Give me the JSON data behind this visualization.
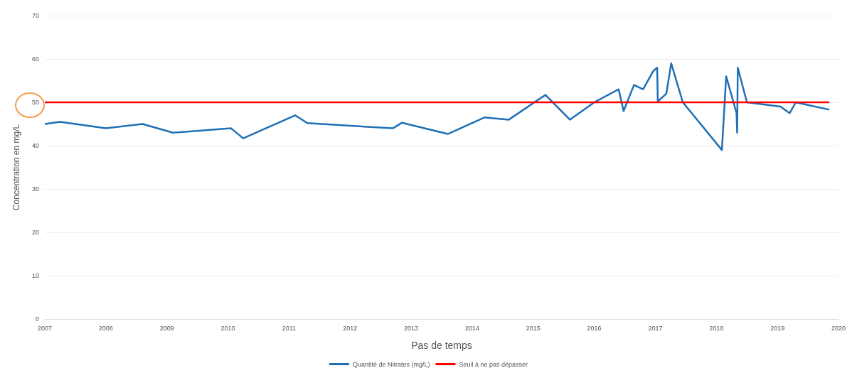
{
  "chart_data": {
    "type": "line",
    "xlabel": "Pas de temps",
    "ylabel": "Concentration en mg/L",
    "xlim": [
      2007,
      2020
    ],
    "xticks": [
      2007,
      2008,
      2009,
      2010,
      2011,
      2012,
      2013,
      2014,
      2015,
      2016,
      2017,
      2018,
      2019,
      2020
    ],
    "ylim": [
      0,
      70
    ],
    "yticks": [
      0,
      10,
      20,
      30,
      40,
      50,
      60,
      70
    ],
    "grid": "y",
    "legend": "bottom",
    "marker": "none",
    "line_style": "solid",
    "series": [
      {
        "name": "Quantité de Nitrates (mg/L)",
        "color": "#1f6fb5",
        "x": [
          2007.0,
          2007.25,
          2008.0,
          2008.6,
          2009.1,
          2010.05,
          2010.25,
          2011.1,
          2011.3,
          2012.7,
          2012.85,
          2013.6,
          2014.2,
          2014.6,
          2015.2,
          2015.6,
          2016.0,
          2016.4,
          2016.48,
          2016.65,
          2016.8,
          2016.97,
          2017.03,
          2017.04,
          2017.18,
          2017.26,
          2017.45,
          2018.09,
          2018.16,
          2018.33,
          2018.34,
          2018.35,
          2018.5,
          2019.05,
          2019.2,
          2019.3,
          2019.85
        ],
        "values": [
          45,
          45.5,
          44,
          45,
          43,
          44,
          41.7,
          47,
          45.2,
          44,
          45.3,
          42.7,
          46.5,
          46,
          51.7,
          46,
          50,
          53,
          48,
          54,
          53,
          57.3,
          58,
          50.2,
          52,
          59,
          50,
          39,
          56,
          47.5,
          43,
          58,
          50,
          49,
          47.5,
          50,
          48.3
        ]
      },
      {
        "name": "Seuil à ne pas dépasser",
        "color": "#ff0000",
        "x": [
          2007.0,
          2019.85
        ],
        "values": [
          50,
          50
        ]
      }
    ]
  }
}
